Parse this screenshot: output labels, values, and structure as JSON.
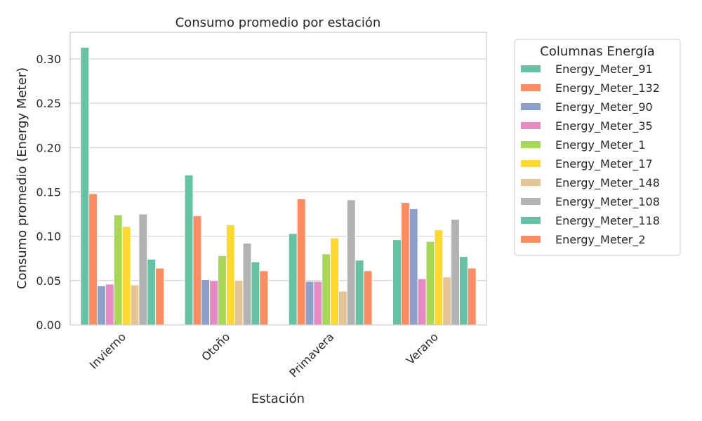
{
  "chart_data": {
    "type": "bar",
    "title": "Consumo promedio por estación",
    "xlabel": "Estación",
    "ylabel": "Consumo promedio (Energy Meter)",
    "categories": [
      "Invierno",
      "Otoño",
      "Primavera",
      "Verano"
    ],
    "ylim": [
      0,
      0.33
    ],
    "yticks": [
      0.0,
      0.05,
      0.1,
      0.15,
      0.2,
      0.25,
      0.3
    ],
    "ytick_labels": [
      "0.00",
      "0.05",
      "0.10",
      "0.15",
      "0.20",
      "0.25",
      "0.30"
    ],
    "grid": true,
    "legend": {
      "title": "Columnas Energía",
      "placement": "outside-right"
    },
    "series": [
      {
        "name": "Energy_Meter_91",
        "color": "#66c2a5",
        "values": [
          0.313,
          0.169,
          0.103,
          0.096
        ]
      },
      {
        "name": "Energy_Meter_132",
        "color": "#fc8d62",
        "values": [
          0.148,
          0.123,
          0.142,
          0.138
        ]
      },
      {
        "name": "Energy_Meter_90",
        "color": "#8da0cb",
        "values": [
          0.044,
          0.051,
          0.049,
          0.131
        ]
      },
      {
        "name": "Energy_Meter_35",
        "color": "#e78ac3",
        "values": [
          0.046,
          0.05,
          0.049,
          0.052
        ]
      },
      {
        "name": "Energy_Meter_1",
        "color": "#a6d854",
        "values": [
          0.124,
          0.078,
          0.08,
          0.094
        ]
      },
      {
        "name": "Energy_Meter_17",
        "color": "#ffd92f",
        "values": [
          0.111,
          0.113,
          0.098,
          0.107
        ]
      },
      {
        "name": "Energy_Meter_148",
        "color": "#e5c494",
        "values": [
          0.045,
          0.05,
          0.038,
          0.054
        ]
      },
      {
        "name": "Energy_Meter_108",
        "color": "#b3b3b3",
        "values": [
          0.125,
          0.092,
          0.141,
          0.119
        ]
      },
      {
        "name": "Energy_Meter_118",
        "color": "#66c2a5",
        "values": [
          0.074,
          0.071,
          0.073,
          0.077
        ]
      },
      {
        "name": "Energy_Meter_2",
        "color": "#fc8d62",
        "values": [
          0.064,
          0.061,
          0.061,
          0.064
        ]
      }
    ]
  }
}
